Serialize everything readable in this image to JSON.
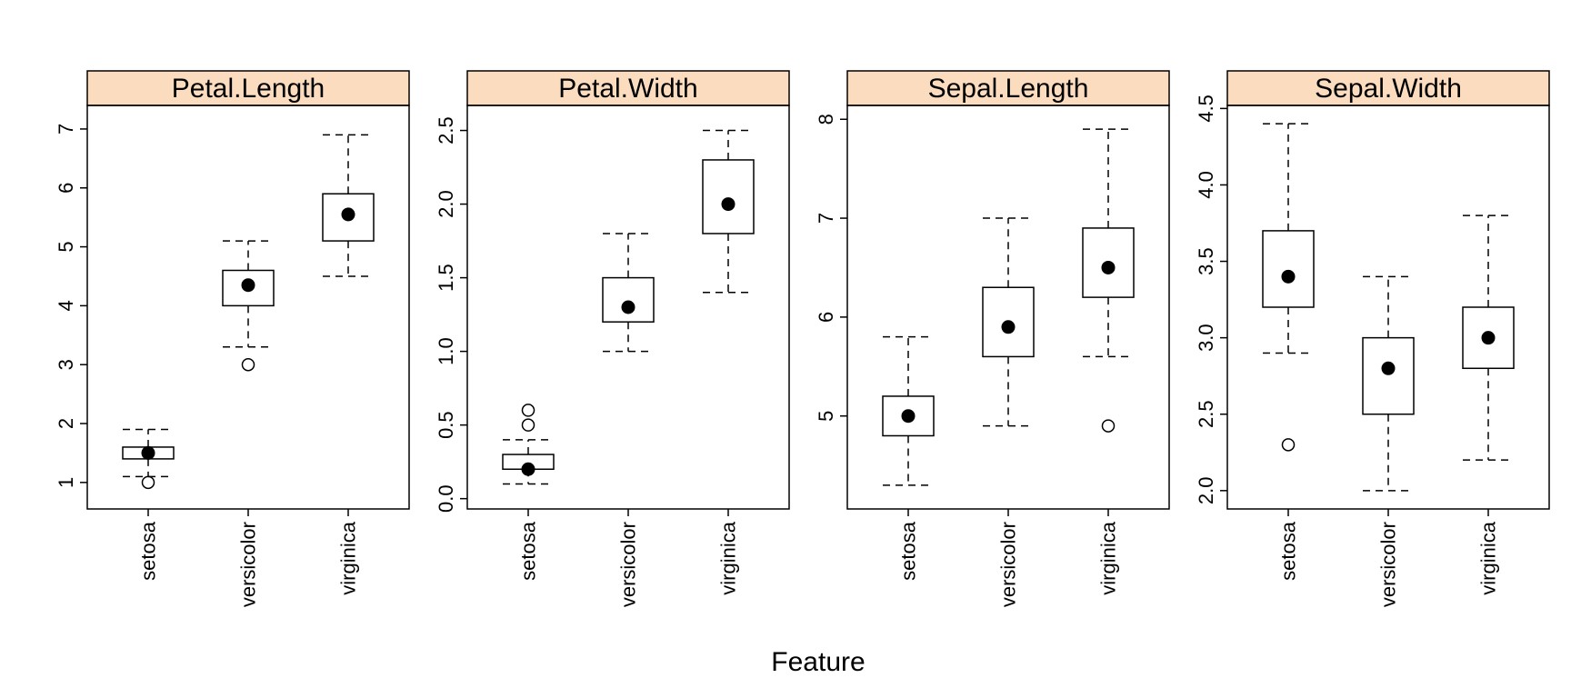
{
  "chart_data": {
    "type": "box",
    "xlabel": "Feature",
    "categories": [
      "setosa",
      "versicolor",
      "virginica"
    ],
    "strip_color": "#fcdcbf",
    "panels": [
      {
        "title": "Petal.Length",
        "ylim": [
          0.55,
          7.4
        ],
        "yticks": [
          "1",
          "2",
          "3",
          "4",
          "5",
          "6",
          "7"
        ],
        "boxes": [
          {
            "category": "setosa",
            "min": 1.1,
            "q1": 1.4,
            "median": 1.5,
            "q3": 1.6,
            "max": 1.9,
            "outliers": [
              1.0
            ]
          },
          {
            "category": "versicolor",
            "min": 3.3,
            "q1": 4.0,
            "median": 4.35,
            "q3": 4.6,
            "max": 5.1,
            "outliers": [
              3.0
            ]
          },
          {
            "category": "virginica",
            "min": 4.5,
            "q1": 5.1,
            "median": 5.55,
            "q3": 5.9,
            "max": 6.9,
            "outliers": []
          }
        ]
      },
      {
        "title": "Petal.Width",
        "ylim": [
          -0.07,
          2.67
        ],
        "yticks": [
          "0.0",
          "0.5",
          "1.0",
          "1.5",
          "2.0",
          "2.5"
        ],
        "boxes": [
          {
            "category": "setosa",
            "min": 0.1,
            "q1": 0.2,
            "median": 0.2,
            "q3": 0.3,
            "max": 0.4,
            "outliers": [
              0.5,
              0.6
            ]
          },
          {
            "category": "versicolor",
            "min": 1.0,
            "q1": 1.2,
            "median": 1.3,
            "q3": 1.5,
            "max": 1.8,
            "outliers": []
          },
          {
            "category": "virginica",
            "min": 1.4,
            "q1": 1.8,
            "median": 2.0,
            "q3": 2.3,
            "max": 2.5,
            "outliers": []
          }
        ]
      },
      {
        "title": "Sepal.Length",
        "ylim": [
          4.06,
          8.14
        ],
        "yticks": [
          "5",
          "6",
          "7",
          "8"
        ],
        "boxes": [
          {
            "category": "setosa",
            "min": 4.3,
            "q1": 4.8,
            "median": 5.0,
            "q3": 5.2,
            "max": 5.8,
            "outliers": []
          },
          {
            "category": "versicolor",
            "min": 4.9,
            "q1": 5.6,
            "median": 5.9,
            "q3": 6.3,
            "max": 7.0,
            "outliers": []
          },
          {
            "category": "virginica",
            "min": 5.6,
            "q1": 6.2,
            "median": 6.5,
            "q3": 6.9,
            "max": 7.9,
            "outliers": [
              4.9
            ]
          }
        ]
      },
      {
        "title": "Sepal.Width",
        "ylim": [
          1.88,
          4.52
        ],
        "yticks": [
          "2.0",
          "2.5",
          "3.0",
          "3.5",
          "4.0",
          "4.5"
        ],
        "boxes": [
          {
            "category": "setosa",
            "min": 2.9,
            "q1": 3.2,
            "median": 3.4,
            "q3": 3.7,
            "max": 4.4,
            "outliers": [
              2.3
            ]
          },
          {
            "category": "versicolor",
            "min": 2.0,
            "q1": 2.5,
            "median": 2.8,
            "q3": 3.0,
            "max": 3.4,
            "outliers": []
          },
          {
            "category": "virginica",
            "min": 2.2,
            "q1": 2.8,
            "median": 3.0,
            "q3": 3.2,
            "max": 3.8,
            "outliers": []
          }
        ]
      }
    ]
  }
}
